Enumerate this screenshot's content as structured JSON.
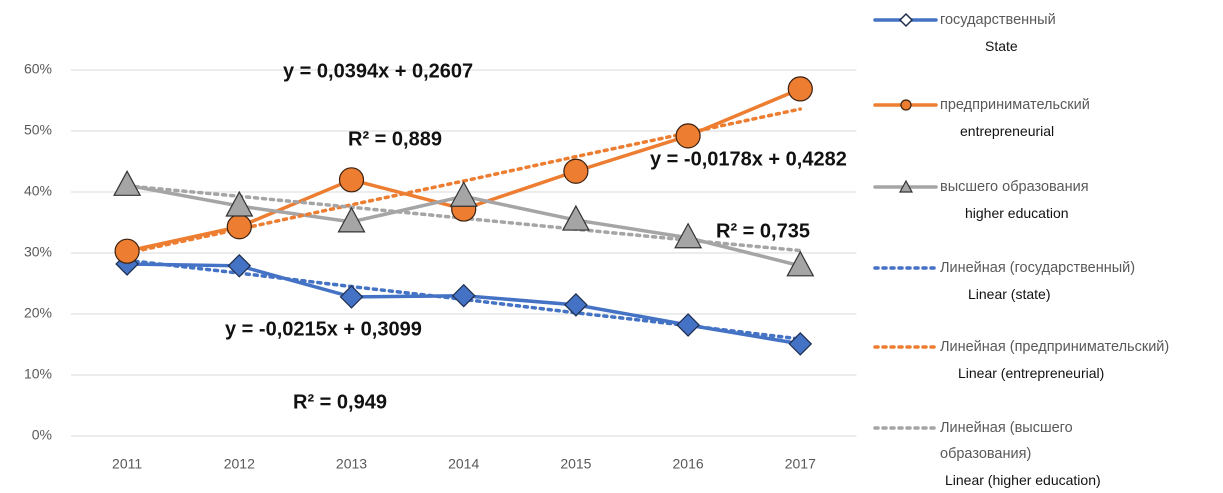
{
  "chart_data": {
    "type": "line",
    "categories": [
      "2011",
      "2012",
      "2013",
      "2014",
      "2015",
      "2016",
      "2017"
    ],
    "ylim": [
      0,
      60
    ],
    "yticks": [
      {
        "value": 0,
        "label": "0%"
      },
      {
        "value": 10,
        "label": "10%"
      },
      {
        "value": 20,
        "label": "20%"
      },
      {
        "value": 30,
        "label": "30%"
      },
      {
        "value": 40,
        "label": "40%"
      },
      {
        "value": 50,
        "label": "50%"
      },
      {
        "value": 60,
        "label": "60%"
      }
    ],
    "grid": true,
    "series": [
      {
        "name": "государственный",
        "name_en": "State",
        "color": "#4472c4",
        "marker": "diamond",
        "line_style": "solid",
        "values": [
          28.2,
          27.9,
          22.8,
          23.0,
          21.5,
          18.2,
          15.1
        ]
      },
      {
        "name": "предпринимательский",
        "name_en": "entrepreneurial",
        "color": "#ed7d31",
        "marker": "circle",
        "line_style": "solid",
        "values": [
          30.3,
          34.3,
          42.0,
          37.2,
          43.4,
          49.2,
          56.9
        ]
      },
      {
        "name": "высшего образования",
        "name_en": "higher education",
        "color": "#a5a5a5",
        "marker": "triangle",
        "line_style": "solid",
        "values": [
          41.1,
          37.7,
          35.1,
          39.3,
          35.4,
          32.5,
          27.9
        ]
      },
      {
        "name": "Линейная (государственный)",
        "name_en": "Linear (state)",
        "color": "#4472c4",
        "marker": "none",
        "line_style": "dotted",
        "values": [
          28.8,
          26.7,
          24.5,
          22.4,
          20.2,
          18.1,
          15.9
        ]
      },
      {
        "name": "Линейная (предпринимательский)",
        "name_en": "Linear (entrepreneurial)",
        "color": "#ed7d31",
        "marker": "none",
        "line_style": "dotted",
        "values": [
          30.0,
          33.9,
          37.9,
          41.8,
          45.8,
          49.7,
          53.6
        ]
      },
      {
        "name": "Линейная (высшего образования)",
        "name_en": "Linear (higher education)",
        "color": "#a5a5a5",
        "marker": "none",
        "line_style": "dotted",
        "values": [
          41.0,
          39.3,
          37.5,
          35.7,
          33.9,
          32.1,
          30.4
        ]
      }
    ],
    "annotations": [
      "y = 0,0394x + 0,2607",
      "R² = 0,889",
      "y = -0,0178x + 0,4282",
      "R² = 0,735",
      "y = -0,0215x + 0,3099",
      "R² = 0,949"
    ]
  }
}
